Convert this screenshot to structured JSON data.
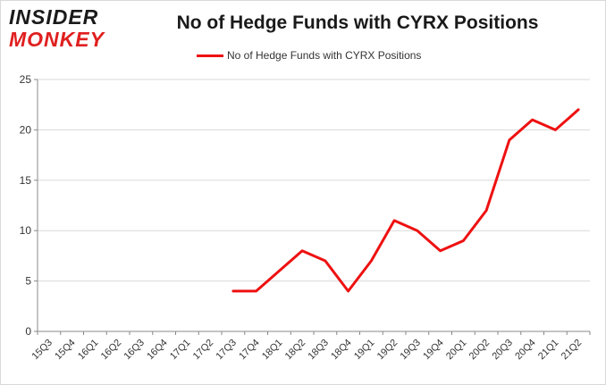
{
  "logo": {
    "line1": "INSIDER",
    "line2": "MONKEY"
  },
  "colors": {
    "series": "#ee1111",
    "grid": "#d9d9d9",
    "axis": "#888888",
    "text": "#333333"
  },
  "chart_data": {
    "type": "line",
    "title": "No of Hedge Funds with CYRX Positions",
    "xlabel": "",
    "ylabel": "",
    "ylim": [
      0,
      25
    ],
    "yticks": [
      0,
      5,
      10,
      15,
      20,
      25
    ],
    "grid": true,
    "legend": "top-center",
    "categories": [
      "15Q3",
      "15Q4",
      "16Q1",
      "16Q2",
      "16Q3",
      "16Q4",
      "17Q1",
      "17Q2",
      "17Q3",
      "17Q4",
      "18Q1",
      "18Q2",
      "18Q3",
      "18Q4",
      "19Q1",
      "19Q2",
      "19Q3",
      "19Q4",
      "20Q1",
      "20Q2",
      "20Q3",
      "20Q4",
      "21Q1",
      "21Q2"
    ],
    "series": [
      {
        "name": "No of Hedge Funds with CYRX Positions",
        "values": [
          null,
          null,
          null,
          null,
          null,
          null,
          null,
          null,
          4,
          4,
          6,
          8,
          7,
          4,
          7,
          11,
          10,
          8,
          9,
          12,
          19,
          21,
          20,
          22
        ]
      }
    ]
  }
}
